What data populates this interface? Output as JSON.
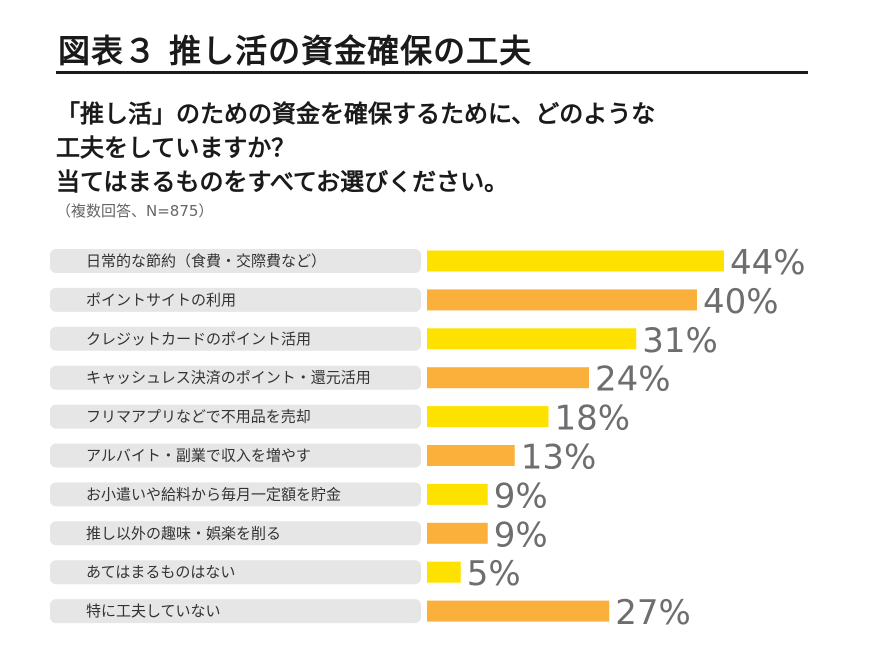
{
  "header": {
    "title": "図表３ 推し活の資金確保の工夫",
    "question_lines": [
      "「推し活」のための資金を確保するために、どのような",
      "工夫をしていますか？",
      "当てはまるものをすべてお選びください。"
    ],
    "note": "（複数回答、N=875）"
  },
  "chart_data": {
    "type": "bar",
    "orientation": "horizontal",
    "title": "図表３ 推し活の資金確保の工夫",
    "xlabel": "",
    "ylabel": "",
    "xlim": [
      0,
      100
    ],
    "grid": false,
    "legend": "none",
    "categories": [
      "日常的な節約（食費・交際費など）",
      "ポイントサイトの利用",
      "クレジットカードのポイント活用",
      "キャッシュレス決済のポイント・還元活用",
      "フリマアプリなどで不用品を売却",
      "アルバイト・副業で収入を増やす",
      "お小遣いや給料から毎月一定額を貯金",
      "推し以外の趣味・娯楽を削る",
      "あてはまるものはない",
      "特に工夫していない"
    ],
    "values": [
      44,
      40,
      31,
      24,
      18,
      13,
      9,
      9,
      5,
      27
    ],
    "value_labels": [
      "44%",
      "40%",
      "31%",
      "24%",
      "18%",
      "13%",
      "9%",
      "9%",
      "5%",
      "27%"
    ],
    "colors": [
      "#ffe100",
      "#fbb03b",
      "#ffe100",
      "#fbb03b",
      "#ffe100",
      "#fbb03b",
      "#ffe100",
      "#fbb03b",
      "#ffe100",
      "#fbb03b"
    ],
    "label_background": "#e6e6e6"
  }
}
